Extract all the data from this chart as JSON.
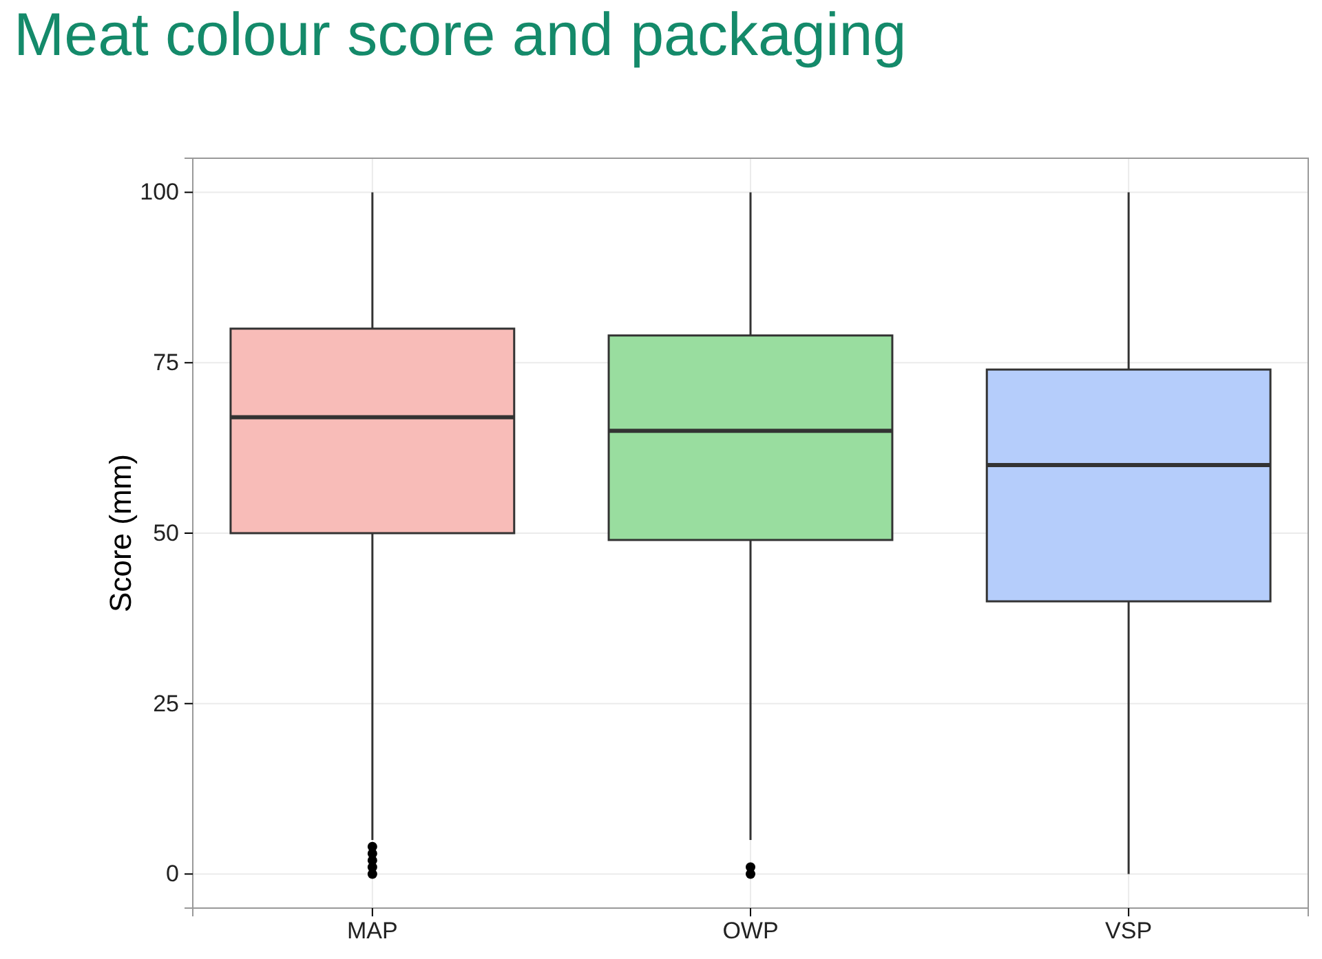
{
  "chart_data": {
    "type": "box",
    "title": "Meat colour score and packaging",
    "ylabel": "Score (mm)",
    "categories": [
      "MAP",
      "OWP",
      "VSP"
    ],
    "boxes": [
      {
        "low": 5,
        "q1": 50,
        "median": 67,
        "q3": 80,
        "high": 100,
        "outliers": [
          0,
          1,
          2,
          3,
          4
        ]
      },
      {
        "low": 5,
        "q1": 49,
        "median": 65,
        "q3": 79,
        "high": 100,
        "outliers": [
          0,
          1
        ]
      },
      {
        "low": 0,
        "q1": 40,
        "median": 60,
        "q3": 74,
        "high": 100
      }
    ],
    "colors": [
      "#f8bcb8",
      "#99dd9f",
      "#b5cdfb"
    ],
    "ylim": [
      -5,
      105
    ],
    "yticks": [
      0,
      25,
      50,
      75,
      100
    ],
    "grid": true
  }
}
